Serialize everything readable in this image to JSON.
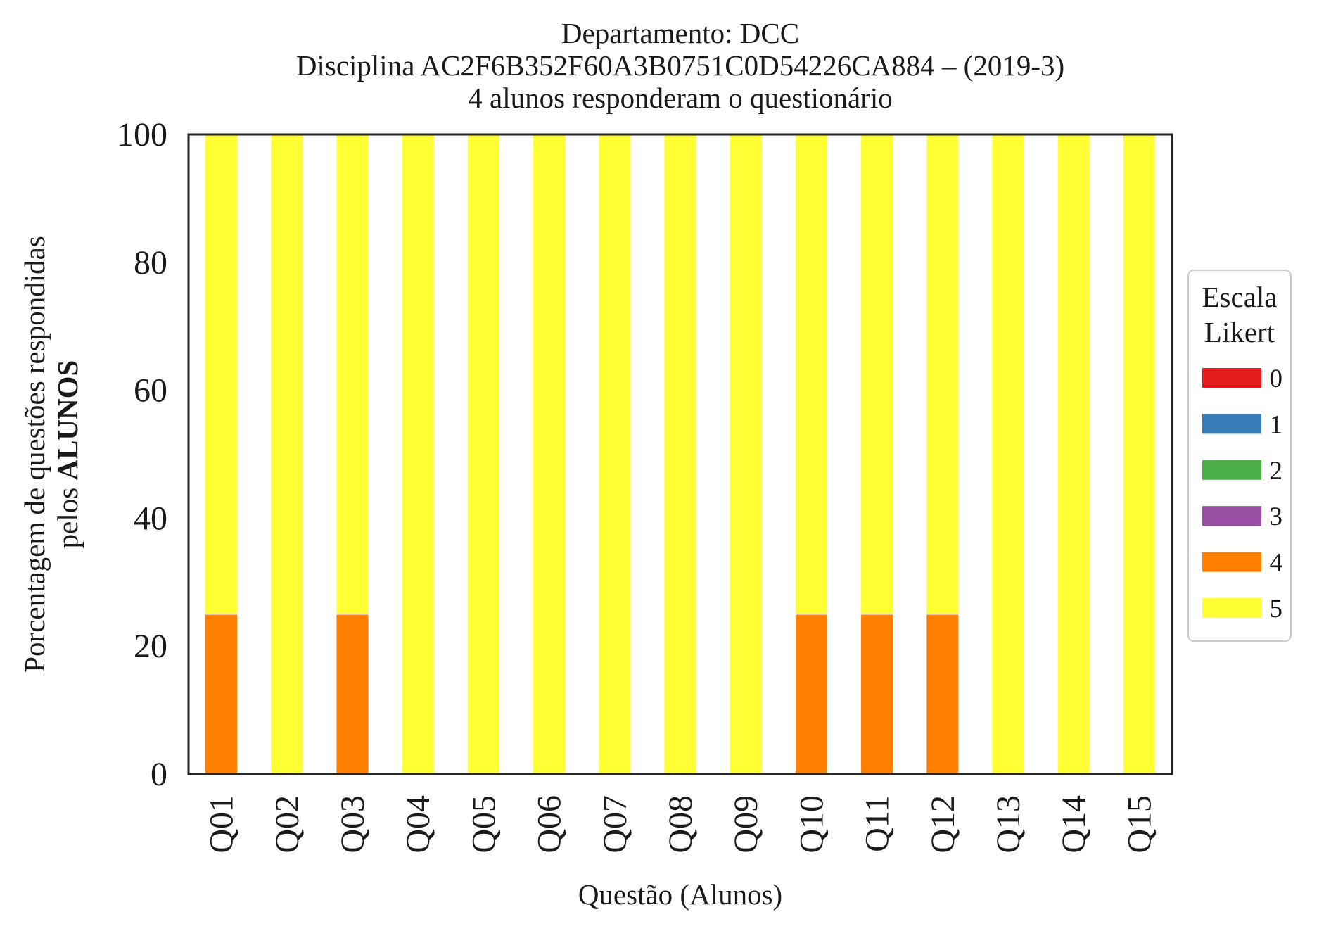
{
  "chart_data": {
    "type": "bar",
    "stacked": true,
    "title_lines": [
      "Departamento: DCC",
      "Disciplina AC2F6B352F60A3B0751C0D54226CA884 – (2019-3)",
      "4 alunos responderam o questionário"
    ],
    "xlabel": "Questão (Alunos)",
    "ylabel_line1": "Porcentagem de questões respondidas",
    "ylabel_line2_prefix": "pelos ",
    "ylabel_line2_bold": "ALUNOS",
    "ylim": [
      0,
      100
    ],
    "yticks": [
      "0",
      "20",
      "40",
      "60",
      "80",
      "100"
    ],
    "categories": [
      "Q01",
      "Q02",
      "Q03",
      "Q04",
      "Q05",
      "Q06",
      "Q07",
      "Q08",
      "Q09",
      "Q10",
      "Q11",
      "Q12",
      "Q13",
      "Q14",
      "Q15"
    ],
    "series": [
      {
        "name": "0",
        "color": "#e41a1c",
        "values": [
          0,
          0,
          0,
          0,
          0,
          0,
          0,
          0,
          0,
          0,
          0,
          0,
          0,
          0,
          0
        ]
      },
      {
        "name": "1",
        "color": "#377eb8",
        "values": [
          0,
          0,
          0,
          0,
          0,
          0,
          0,
          0,
          0,
          0,
          0,
          0,
          0,
          0,
          0
        ]
      },
      {
        "name": "2",
        "color": "#4daf4a",
        "values": [
          0,
          0,
          0,
          0,
          0,
          0,
          0,
          0,
          0,
          0,
          0,
          0,
          0,
          0,
          0
        ]
      },
      {
        "name": "3",
        "color": "#984ea3",
        "values": [
          0,
          0,
          0,
          0,
          0,
          0,
          0,
          0,
          0,
          0,
          0,
          0,
          0,
          0,
          0
        ]
      },
      {
        "name": "4",
        "color": "#ff7f00",
        "values": [
          25,
          0,
          25,
          0,
          0,
          0,
          0,
          0,
          0,
          25,
          25,
          25,
          0,
          0,
          0
        ]
      },
      {
        "name": "5",
        "color": "#ffff33",
        "values": [
          75,
          100,
          75,
          100,
          100,
          100,
          100,
          100,
          100,
          75,
          75,
          75,
          100,
          100,
          100
        ]
      }
    ],
    "legend": {
      "title_lines": [
        "Escala",
        "Likert"
      ],
      "placement": "right-center"
    },
    "grid": false
  }
}
